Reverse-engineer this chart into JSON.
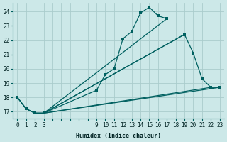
{
  "xlabel": "Humidex (Indice chaleur)",
  "bg_color": "#cce8e8",
  "grid_color": "#aacccc",
  "line_color": "#006060",
  "ylim": [
    16.5,
    24.6
  ],
  "xlim": [
    -0.5,
    23.5
  ],
  "yticks": [
    17,
    18,
    19,
    20,
    21,
    22,
    23,
    24
  ],
  "xticks_all": [
    0,
    1,
    2,
    3,
    4,
    5,
    6,
    7,
    8,
    9,
    10,
    11,
    12,
    13,
    14,
    15,
    16,
    17,
    18,
    19,
    20,
    21,
    22,
    23
  ],
  "xticks_labeled": [
    0,
    1,
    2,
    3,
    9,
    10,
    11,
    12,
    13,
    14,
    15,
    16,
    17,
    18,
    19,
    20,
    21,
    22,
    23
  ],
  "s1x": [
    0,
    1,
    2,
    3,
    9,
    10,
    11,
    12,
    13,
    14,
    15,
    16,
    17
  ],
  "s1y": [
    18.0,
    17.2,
    16.9,
    16.9,
    18.5,
    19.6,
    20.0,
    22.1,
    22.6,
    23.9,
    24.3,
    23.7,
    23.5
  ],
  "s2x": [
    0,
    1,
    2,
    3,
    19,
    20,
    21,
    22,
    23
  ],
  "s2y": [
    18.0,
    17.2,
    16.9,
    16.9,
    22.4,
    21.1,
    19.3,
    18.7,
    18.7
  ],
  "s3x": [
    0,
    1,
    2,
    3,
    22,
    23
  ],
  "s3y": [
    18.0,
    17.2,
    16.9,
    16.9,
    18.7,
    18.7
  ],
  "diag1x": [
    3,
    17
  ],
  "diag1y": [
    16.9,
    23.5
  ],
  "diag2x": [
    3,
    19
  ],
  "diag2y": [
    16.9,
    22.4
  ],
  "diag3x": [
    3,
    23
  ],
  "diag3y": [
    16.9,
    18.7
  ]
}
